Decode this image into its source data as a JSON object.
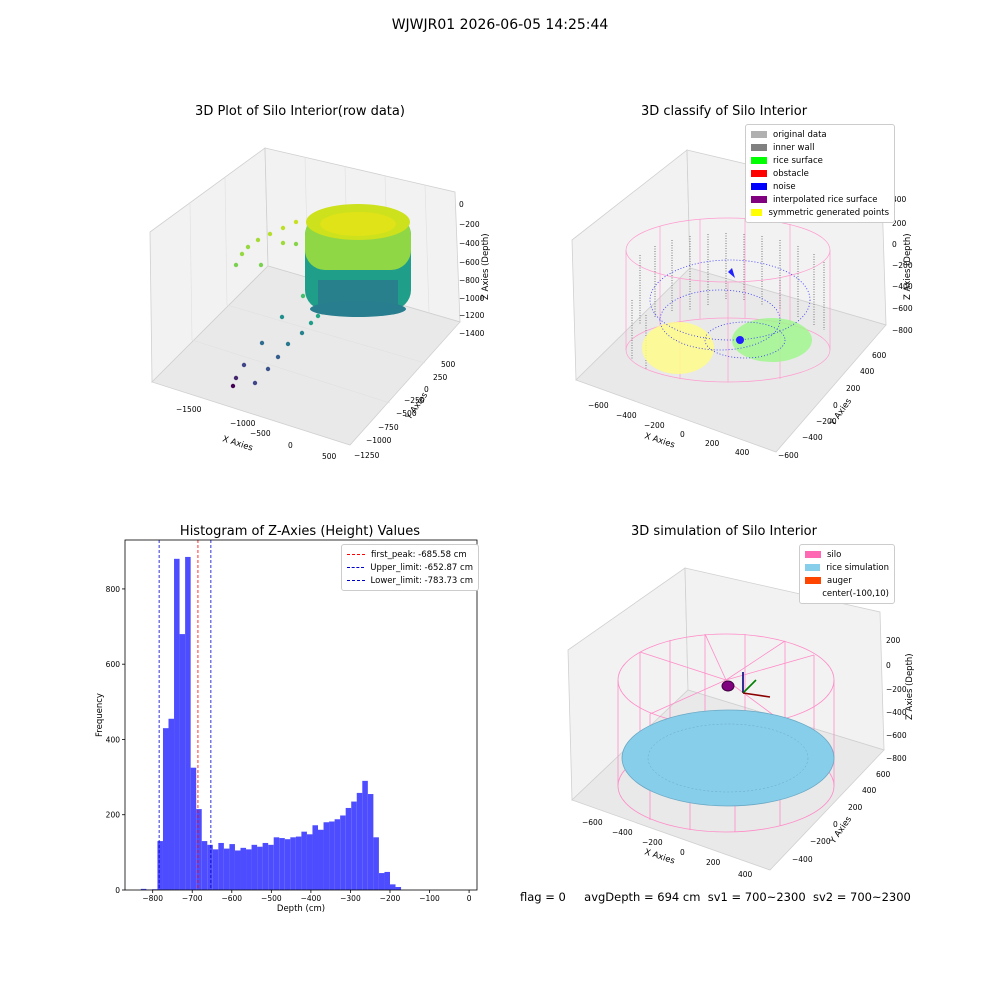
{
  "suptitle": "WJWJR01 2026-06-05 14:25:44",
  "status": {
    "flag": "flag = 0",
    "avg": "avgDepth = 694 cm",
    "sv1": "sv1 = 700~2300",
    "sv2": "sv2 = 700~2300"
  },
  "chart_data": [
    {
      "type": "scatter",
      "title": "3D Plot of Silo Interior(row data)",
      "xlabel": "X Axies",
      "ylabel": "Y Axies",
      "zlabel": "Z Axies (Depth)",
      "x_ticks": [
        "−1500",
        "−1000",
        "−500",
        "0",
        "500"
      ],
      "y_ticks": [
        "500",
        "250",
        "0",
        "−250",
        "−500",
        "−750",
        "−1000",
        "−1250"
      ],
      "z_ticks": [
        "0",
        "−200",
        "−400",
        "−600",
        "−800",
        "−1000",
        "−1200",
        "−1400"
      ],
      "colormap": "viridis"
    },
    {
      "type": "scatter",
      "title": "3D classify of Silo Interior",
      "xlabel": "X Axies",
      "ylabel": "Y Axies",
      "zlabel": "Z Axies (Depth)",
      "x_ticks": [
        "−600",
        "−400",
        "−200",
        "0",
        "200",
        "400"
      ],
      "y_ticks": [
        "600",
        "400",
        "200",
        "0",
        "−200",
        "−400",
        "−600"
      ],
      "z_ticks": [
        "400",
        "200",
        "0",
        "−200",
        "−400",
        "−600",
        "−800"
      ],
      "legend": [
        {
          "name": "original data",
          "color": "#b0b0b0"
        },
        {
          "name": "inner wall",
          "color": "#808080"
        },
        {
          "name": "rice surface",
          "color": "#00ff00"
        },
        {
          "name": "obstacle",
          "color": "#ff0000"
        },
        {
          "name": "noise",
          "color": "#0000ff"
        },
        {
          "name": "interpolated rice surface",
          "color": "#800080"
        },
        {
          "name": "symmetric generated points",
          "color": "#ffff00"
        }
      ]
    },
    {
      "type": "bar",
      "title": "Histogram of Z-Axies (Height) Values",
      "xlabel": "Depth (cm)",
      "ylabel": "Frequency",
      "xlim": [
        -870,
        20
      ],
      "ylim": [
        0,
        930
      ],
      "x_ticks": [
        -800,
        -700,
        -600,
        -500,
        -400,
        -300,
        -200,
        -100,
        0
      ],
      "y_ticks": [
        0,
        200,
        400,
        600,
        800
      ],
      "bin_start": -830,
      "bin_width": 14,
      "values": [
        3,
        1,
        2,
        130,
        430,
        455,
        880,
        680,
        885,
        325,
        215,
        130,
        120,
        108,
        125,
        110,
        122,
        105,
        112,
        108,
        120,
        115,
        125,
        120,
        140,
        138,
        135,
        140,
        142,
        155,
        148,
        172,
        160,
        180,
        182,
        188,
        198,
        218,
        235,
        258,
        290,
        255,
        140,
        45,
        48,
        15,
        8
      ],
      "bar_color": "#4d4dff",
      "lines": [
        {
          "label": "first_peak: -685.58 cm",
          "value": -685.58,
          "color": "#ff0000"
        },
        {
          "label": "Upper_limit: -652.87 cm",
          "value": -652.87,
          "color": "#0000cc"
        },
        {
          "label": "Lower_limit: -783.73 cm",
          "value": -783.73,
          "color": "#0000cc"
        }
      ]
    },
    {
      "type": "scatter",
      "title": "3D simulation of Silo Interior",
      "xlabel": "X Axies",
      "ylabel": "Y Axies",
      "zlabel": "Z Axies (Depth)",
      "x_ticks": [
        "−600",
        "−400",
        "−200",
        "0",
        "200",
        "400"
      ],
      "y_ticks": [
        "600",
        "400",
        "200",
        "0",
        "−200",
        "−400"
      ],
      "z_ticks": [
        "200",
        "0",
        "−200",
        "−400",
        "−600",
        "−800"
      ],
      "legend": [
        {
          "name": "silo",
          "color": "#ff69b4"
        },
        {
          "name": "rice simulation",
          "color": "#87ceeb"
        },
        {
          "name": "auger",
          "color": "#ff4500"
        },
        {
          "name": "center(-100,10)",
          "color": ""
        }
      ]
    }
  ]
}
